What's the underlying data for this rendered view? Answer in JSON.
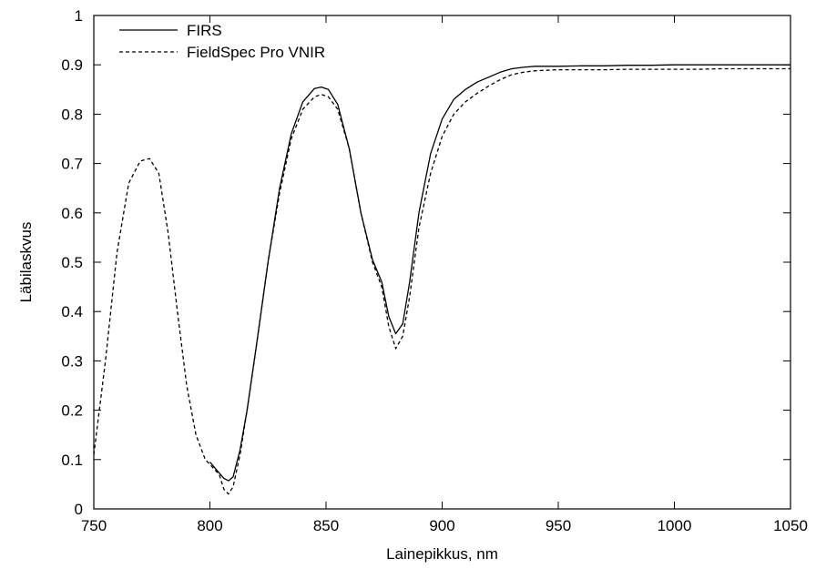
{
  "chart_data": {
    "type": "line",
    "title": "",
    "xlabel": "Lainepikkus, nm",
    "ylabel": "Läbilaskvus",
    "xlim": [
      750,
      1050
    ],
    "ylim": [
      0,
      1
    ],
    "xticks": [
      750,
      800,
      850,
      900,
      950,
      1000,
      1050
    ],
    "yticks": [
      0,
      0.1,
      0.2,
      0.3,
      0.4,
      0.5,
      0.6,
      0.7,
      0.8,
      0.9,
      1
    ],
    "xtick_labels": [
      "750",
      "800",
      "850",
      "900",
      "950",
      "1000",
      "1050"
    ],
    "ytick_labels": [
      "0",
      "0.1",
      "0.2",
      "0.3",
      "0.4",
      "0.5",
      "0.6",
      "0.7",
      "0.8",
      "0.9",
      "1"
    ],
    "grid": false,
    "legend_position": "top-left",
    "series": [
      {
        "name": "FIRS",
        "style": "solid",
        "color": "#000000",
        "x": [
          800,
          803,
          806,
          808,
          810,
          813,
          816,
          820,
          825,
          830,
          835,
          840,
          845,
          848,
          851,
          855,
          860,
          865,
          870,
          874,
          877,
          880,
          883,
          886,
          890,
          895,
          900,
          905,
          910,
          915,
          920,
          925,
          930,
          935,
          940,
          945,
          950,
          960,
          970,
          980,
          990,
          1000,
          1010,
          1020,
          1030,
          1040,
          1050
        ],
        "y": [
          0.095,
          0.078,
          0.062,
          0.057,
          0.065,
          0.12,
          0.2,
          0.33,
          0.5,
          0.65,
          0.76,
          0.825,
          0.852,
          0.855,
          0.85,
          0.82,
          0.73,
          0.6,
          0.505,
          0.46,
          0.39,
          0.355,
          0.375,
          0.46,
          0.6,
          0.72,
          0.79,
          0.83,
          0.85,
          0.865,
          0.875,
          0.885,
          0.892,
          0.895,
          0.897,
          0.897,
          0.897,
          0.898,
          0.898,
          0.899,
          0.899,
          0.9,
          0.9,
          0.9,
          0.9,
          0.9,
          0.9
        ]
      },
      {
        "name": "FieldSpec Pro VNIR",
        "style": "dashed",
        "color": "#000000",
        "x": [
          750,
          755,
          760,
          765,
          770,
          774,
          778,
          782,
          786,
          790,
          794,
          798,
          801,
          804,
          806,
          808,
          810,
          813,
          816,
          820,
          825,
          830,
          835,
          840,
          845,
          848,
          851,
          855,
          860,
          865,
          870,
          874,
          877,
          880,
          883,
          886,
          890,
          895,
          900,
          905,
          910,
          915,
          920,
          925,
          930,
          935,
          940,
          950,
          960,
          970,
          980,
          990,
          1000,
          1010,
          1020,
          1030,
          1040,
          1050
        ],
        "y": [
          0.11,
          0.3,
          0.52,
          0.66,
          0.705,
          0.71,
          0.68,
          0.56,
          0.4,
          0.25,
          0.15,
          0.1,
          0.085,
          0.07,
          0.04,
          0.03,
          0.045,
          0.11,
          0.2,
          0.33,
          0.5,
          0.64,
          0.75,
          0.81,
          0.835,
          0.84,
          0.835,
          0.81,
          0.73,
          0.6,
          0.5,
          0.45,
          0.37,
          0.325,
          0.35,
          0.43,
          0.57,
          0.68,
          0.755,
          0.8,
          0.825,
          0.842,
          0.857,
          0.87,
          0.88,
          0.885,
          0.888,
          0.89,
          0.89,
          0.89,
          0.891,
          0.891,
          0.891,
          0.891,
          0.892,
          0.892,
          0.892,
          0.892
        ]
      }
    ]
  }
}
